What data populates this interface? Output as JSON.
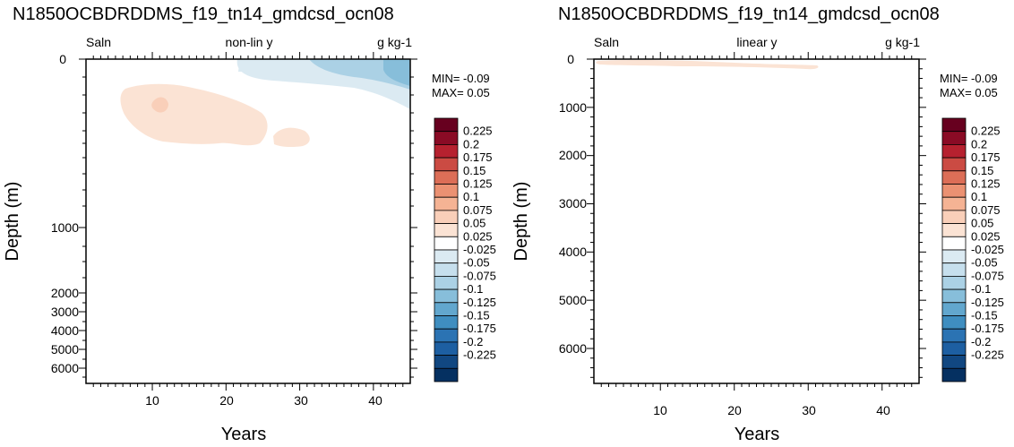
{
  "colors": {
    "levels": [
      "#053061",
      "#114781",
      "#1d5fa2",
      "#2b73b3",
      "#3f8ec0",
      "#62a7ce",
      "#87beda",
      "#abd1e5",
      "#c6dfed",
      "#dbeaf2",
      "#ffffff",
      "#fbe3d4",
      "#f9cfb9",
      "#f5b394",
      "#eb9172",
      "#dc6e57",
      "#cb4b43",
      "#b6212f",
      "#8a0b25",
      "#67001f"
    ],
    "frame": "#000000"
  },
  "panels": [
    {
      "title": "N1850OCBDRDDMS_f19_tn14_gmdcsd_ocn08",
      "left_label": "Saln",
      "center_label": "non-lin y",
      "right_label": "g kg-1",
      "xlabel": "Years",
      "ylabel": "Depth (m)",
      "min_text": "MIN= -0.09",
      "max_text": "MAX=  0.05"
    },
    {
      "title": "N1850OCBDRDDMS_f19_tn14_gmdcsd_ocn08",
      "left_label": "Saln",
      "center_label": "linear y",
      "right_label": "g kg-1",
      "xlabel": "Years",
      "ylabel": "Depth (m)",
      "min_text": "MIN= -0.09",
      "max_text": "MAX=  0.05"
    }
  ],
  "colorbar_labels": [
    "0.225",
    "0.2",
    "0.175",
    "0.15",
    "0.125",
    "0.1",
    "0.075",
    "0.05",
    "0.025",
    "-0.025",
    "-0.05",
    "-0.075",
    "-0.1",
    "-0.125",
    "-0.15",
    "-0.175",
    "-0.2",
    "-0.225"
  ],
  "chart_data": [
    {
      "type": "heatmap",
      "title": "N1850OCBDRDDMS_f19_tn14_gmdcsd_ocn08",
      "variable": "Saln",
      "units": "g kg-1",
      "y_scale": "non-lin y",
      "xlabel": "Years",
      "ylabel": "Depth (m)",
      "xlim": [
        1,
        45
      ],
      "x_ticks": [
        10,
        20,
        30,
        40
      ],
      "y_ticks": [
        0,
        1000,
        2000,
        3000,
        4000,
        5000,
        6000
      ],
      "min": -0.09,
      "max": 0.05,
      "features": [
        {
          "sign": "positive",
          "level": 0.025,
          "years": [
            5,
            31
          ],
          "depth_m": [
            40,
            600
          ]
        },
        {
          "sign": "positive",
          "level": 0.05,
          "years": [
            10,
            12
          ],
          "depth_m": [
            150,
            220
          ]
        },
        {
          "sign": "negative",
          "level": -0.025,
          "years": [
            21,
            45
          ],
          "depth_m": [
            0,
            150
          ]
        },
        {
          "sign": "negative",
          "level": -0.05,
          "years": [
            31,
            45
          ],
          "depth_m": [
            0,
            80
          ]
        },
        {
          "sign": "negative",
          "level": -0.075,
          "years": [
            42,
            45
          ],
          "depth_m": [
            0,
            50
          ]
        }
      ]
    },
    {
      "type": "heatmap",
      "title": "N1850OCBDRDDMS_f19_tn14_gmdcsd_ocn08",
      "variable": "Saln",
      "units": "g kg-1",
      "y_scale": "linear y",
      "xlabel": "Years",
      "ylabel": "Depth (m)",
      "xlim": [
        1,
        45
      ],
      "x_ticks": [
        10,
        20,
        30,
        40
      ],
      "y_ticks": [
        0,
        1000,
        2000,
        3000,
        4000,
        5000,
        6000
      ],
      "min": -0.09,
      "max": 0.05,
      "features": [
        {
          "sign": "positive",
          "level": 0.025,
          "years": [
            6,
            31
          ],
          "depth_m": [
            30,
            200
          ]
        }
      ]
    }
  ],
  "colorbar_levels": [
    -0.225,
    -0.2,
    -0.175,
    -0.15,
    -0.125,
    -0.1,
    -0.075,
    -0.05,
    -0.025,
    0.025,
    0.05,
    0.075,
    0.1,
    0.125,
    0.15,
    0.175,
    0.2,
    0.225
  ]
}
